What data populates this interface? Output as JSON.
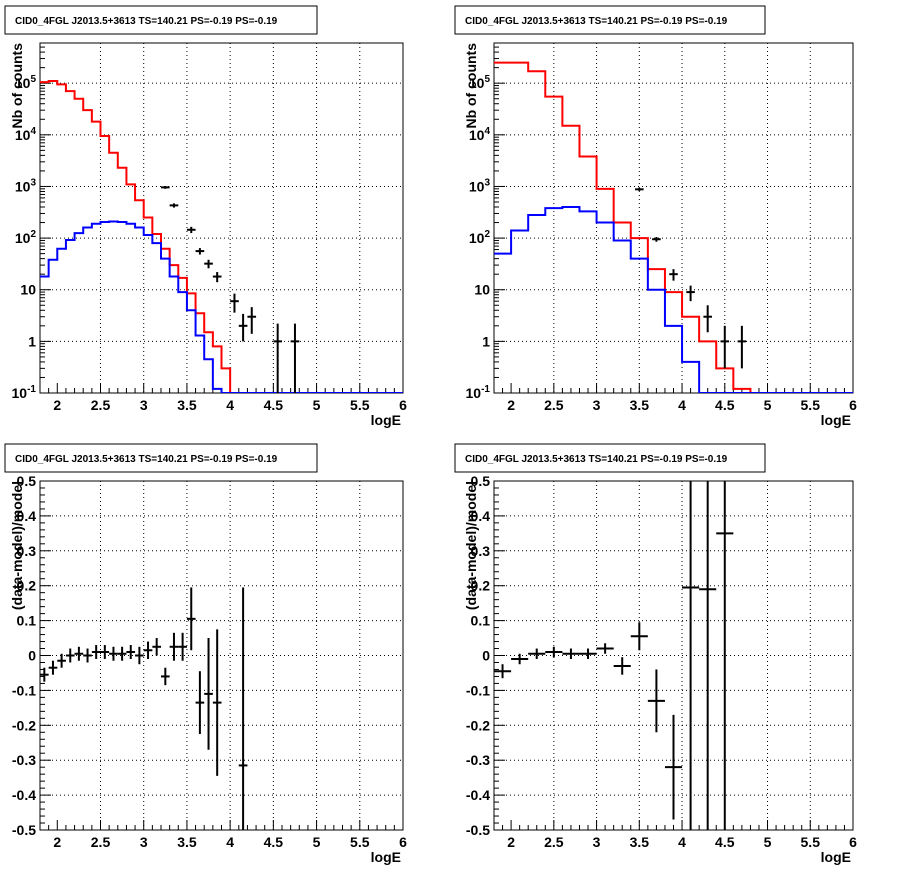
{
  "chart_data": [
    {
      "type": "step-histogram",
      "title": "CID0_4FGL J2013.5+3613 TS=140.21 PS=-0.19 PS=-0.19",
      "xlabel": "logE",
      "ylabel": "Nb of counts",
      "xlim": [
        1.8,
        6.0
      ],
      "ylim": [
        0.1,
        600000
      ],
      "yscale": "log",
      "grid": true,
      "x_ticks": [
        "2",
        "2.5",
        "3",
        "3.5",
        "4",
        "4.5",
        "5",
        "5.5",
        "6"
      ],
      "y_ticks": [
        "10^-1",
        "1",
        "10",
        "10^2",
        "10^3",
        "10^4",
        "10^5"
      ],
      "bin_edges": [
        1.8,
        1.9,
        2.0,
        2.1,
        2.2,
        2.3,
        2.4,
        2.5,
        2.6,
        2.7,
        2.8,
        2.9,
        3.0,
        3.1,
        3.2,
        3.3,
        3.4,
        3.5,
        3.6,
        3.7,
        3.8,
        3.9,
        4.0,
        4.1,
        4.2,
        4.3,
        4.4,
        4.5,
        4.6,
        4.7,
        4.8,
        4.9,
        5.0,
        5.1,
        5.2,
        5.3,
        5.4,
        5.5,
        5.6,
        5.7,
        5.8,
        5.9,
        6.0
      ],
      "series": [
        {
          "color": "#ff0000",
          "values": [
            105000,
            110000,
            95000,
            70000,
            50000,
            30000,
            18000,
            9500,
            4500,
            2300,
            1100,
            540,
            250,
            120,
            62,
            30,
            17,
            8.5,
            3.5,
            1.5,
            0.8,
            0.3,
            0.1,
            0.1,
            0.1,
            0.1,
            0.1,
            0.1,
            0.1,
            0.1,
            0.1,
            0.1,
            0.1,
            0.1,
            0.1,
            0.1,
            0.1,
            0.1,
            0.1,
            0.1,
            0.1,
            0.1
          ]
        },
        {
          "color": "#0000ff",
          "values": [
            18,
            38,
            62,
            92,
            125,
            160,
            190,
            205,
            210,
            205,
            190,
            160,
            115,
            80,
            40,
            18,
            9,
            4,
            1.3,
            0.45,
            0.12,
            0.1,
            0.1,
            0.1,
            0.1,
            0.1,
            0.1,
            0.1,
            0.1,
            0.1,
            0.1,
            0.1,
            0.1,
            0.1,
            0.1,
            0.1,
            0.1,
            0.1,
            0.1,
            0.1,
            0.1,
            0.1
          ]
        }
      ],
      "data_points": [
        {
          "x": 3.25,
          "y": 960,
          "ylo": 900,
          "yhi": 1020
        },
        {
          "x": 3.35,
          "y": 430,
          "ylo": 390,
          "yhi": 470
        },
        {
          "x": 3.55,
          "y": 145,
          "ylo": 125,
          "yhi": 165
        },
        {
          "x": 3.65,
          "y": 56,
          "ylo": 48,
          "yhi": 64
        },
        {
          "x": 3.75,
          "y": 32,
          "ylo": 26,
          "yhi": 38
        },
        {
          "x": 3.85,
          "y": 18,
          "ylo": 14,
          "yhi": 22
        },
        {
          "x": 4.05,
          "y": 6,
          "ylo": 3.6,
          "yhi": 8.4
        },
        {
          "x": 4.15,
          "y": 2,
          "ylo": 1,
          "yhi": 3.4
        },
        {
          "x": 4.25,
          "y": 3,
          "ylo": 1.4,
          "yhi": 4.6
        },
        {
          "x": 4.55,
          "y": 1,
          "ylo": 0.1,
          "yhi": 2.2
        },
        {
          "x": 4.75,
          "y": 1,
          "ylo": 0.1,
          "yhi": 2.2
        }
      ]
    },
    {
      "type": "step-histogram",
      "title": "CID0_4FGL J2013.5+3613 TS=140.21 PS=-0.19 PS=-0.19",
      "xlabel": "logE",
      "ylabel": "Nb of counts",
      "xlim": [
        1.8,
        6.0
      ],
      "ylim": [
        0.1,
        600000
      ],
      "yscale": "log",
      "grid": true,
      "x_ticks": [
        "2",
        "2.5",
        "3",
        "3.5",
        "4",
        "4.5",
        "5",
        "5.5",
        "6"
      ],
      "y_ticks": [
        "10^-1",
        "1",
        "10",
        "10^2",
        "10^3",
        "10^4",
        "10^5"
      ],
      "bin_edges": [
        1.8,
        2.0,
        2.2,
        2.4,
        2.6,
        2.8,
        3.0,
        3.2,
        3.4,
        3.6,
        3.8,
        4.0,
        4.2,
        4.4,
        4.6,
        4.8,
        5.0,
        5.2,
        5.4,
        5.6,
        5.8,
        6.0
      ],
      "series": [
        {
          "color": "#ff0000",
          "values": [
            250000,
            250000,
            170000,
            55000,
            15000,
            3800,
            900,
            200,
            100,
            25,
            9,
            3,
            1,
            0.3,
            0.12,
            0.1,
            0.1,
            0.1,
            0.1,
            0.1,
            0.1
          ]
        },
        {
          "color": "#0000ff",
          "values": [
            50,
            140,
            280,
            380,
            400,
            330,
            200,
            90,
            40,
            10,
            2,
            0.4,
            0.1,
            0.1,
            0.1,
            0.1,
            0.1,
            0.1,
            0.1,
            0.1,
            0.1
          ]
        }
      ],
      "data_points": [
        {
          "x": 3.5,
          "y": 880,
          "ylo": 820,
          "yhi": 940
        },
        {
          "x": 3.7,
          "y": 95,
          "ylo": 85,
          "yhi": 105
        },
        {
          "x": 3.9,
          "y": 20,
          "ylo": 15,
          "yhi": 25
        },
        {
          "x": 4.1,
          "y": 9,
          "ylo": 6,
          "yhi": 12
        },
        {
          "x": 4.3,
          "y": 3,
          "ylo": 1.5,
          "yhi": 5
        },
        {
          "x": 4.5,
          "y": 1,
          "ylo": 0.3,
          "yhi": 2
        },
        {
          "x": 4.7,
          "y": 1,
          "ylo": 0.3,
          "yhi": 2
        }
      ]
    },
    {
      "type": "errorbar",
      "title": "CID0_4FGL J2013.5+3613 TS=140.21 PS=-0.19 PS=-0.19",
      "xlabel": "logE",
      "ylabel": "(data-model)/model",
      "xlim": [
        1.8,
        6.0
      ],
      "ylim": [
        -0.5,
        0.5
      ],
      "grid": true,
      "x_ticks": [
        "2",
        "2.5",
        "3",
        "3.5",
        "4",
        "4.5",
        "5",
        "5.5",
        "6"
      ],
      "y_ticks": [
        "-0.5",
        "-0.4",
        "-0.3",
        "-0.2",
        "-0.1",
        "0",
        "0.1",
        "0.2",
        "0.3",
        "0.4",
        "0.5"
      ],
      "bin_width": 0.1,
      "points": [
        {
          "x": 1.85,
          "y": -0.055,
          "err": 0.02
        },
        {
          "x": 1.95,
          "y": -0.035,
          "err": 0.02
        },
        {
          "x": 2.05,
          "y": -0.015,
          "err": 0.02
        },
        {
          "x": 2.15,
          "y": 0.0,
          "err": 0.02
        },
        {
          "x": 2.25,
          "y": 0.005,
          "err": 0.02
        },
        {
          "x": 2.35,
          "y": 0.0,
          "err": 0.02
        },
        {
          "x": 2.45,
          "y": 0.01,
          "err": 0.02
        },
        {
          "x": 2.55,
          "y": 0.01,
          "err": 0.02
        },
        {
          "x": 2.65,
          "y": 0.005,
          "err": 0.02
        },
        {
          "x": 2.75,
          "y": 0.005,
          "err": 0.02
        },
        {
          "x": 2.85,
          "y": 0.01,
          "err": 0.02
        },
        {
          "x": 2.95,
          "y": 0.0,
          "err": 0.025
        },
        {
          "x": 3.05,
          "y": 0.015,
          "err": 0.025
        },
        {
          "x": 3.15,
          "y": 0.025,
          "err": 0.025
        },
        {
          "x": 3.25,
          "y": -0.06,
          "err": 0.025
        },
        {
          "x": 3.35,
          "y": 0.025,
          "err": 0.04
        },
        {
          "x": 3.45,
          "y": 0.025,
          "err": 0.04
        },
        {
          "x": 3.55,
          "y": 0.105,
          "err": 0.09
        },
        {
          "x": 3.65,
          "y": -0.135,
          "err": 0.09
        },
        {
          "x": 3.75,
          "y": -0.11,
          "err": 0.16
        },
        {
          "x": 3.85,
          "y": -0.135,
          "err": 0.21
        },
        {
          "x": 4.15,
          "y": -0.315,
          "err": 0.51
        }
      ]
    },
    {
      "type": "errorbar",
      "title": "CID0_4FGL J2013.5+3613 TS=140.21 PS=-0.19 PS=-0.19",
      "xlabel": "logE",
      "ylabel": "(data-model)/model",
      "xlim": [
        1.8,
        6.0
      ],
      "ylim": [
        -0.5,
        0.5
      ],
      "grid": true,
      "x_ticks": [
        "2",
        "2.5",
        "3",
        "3.5",
        "4",
        "4.5",
        "5",
        "5.5",
        "6"
      ],
      "y_ticks": [
        "-0.5",
        "-0.4",
        "-0.3",
        "-0.2",
        "-0.1",
        "0",
        "0.1",
        "0.2",
        "0.3",
        "0.4",
        "0.5"
      ],
      "bin_width": 0.2,
      "points": [
        {
          "x": 1.9,
          "y": -0.045,
          "err": 0.02
        },
        {
          "x": 2.1,
          "y": -0.01,
          "err": 0.015
        },
        {
          "x": 2.3,
          "y": 0.005,
          "err": 0.015
        },
        {
          "x": 2.5,
          "y": 0.01,
          "err": 0.015
        },
        {
          "x": 2.7,
          "y": 0.005,
          "err": 0.015
        },
        {
          "x": 2.9,
          "y": 0.005,
          "err": 0.015
        },
        {
          "x": 3.1,
          "y": 0.02,
          "err": 0.015
        },
        {
          "x": 3.3,
          "y": -0.03,
          "err": 0.025
        },
        {
          "x": 3.5,
          "y": 0.055,
          "err": 0.04
        },
        {
          "x": 3.7,
          "y": -0.13,
          "err": 0.09
        },
        {
          "x": 3.9,
          "y": -0.32,
          "err": 0.15
        },
        {
          "x": 4.1,
          "y": 0.195,
          "err": 0.7
        },
        {
          "x": 4.3,
          "y": 0.19,
          "err": 0.7
        },
        {
          "x": 4.5,
          "y": 0.35,
          "err": 0.9
        }
      ]
    }
  ]
}
